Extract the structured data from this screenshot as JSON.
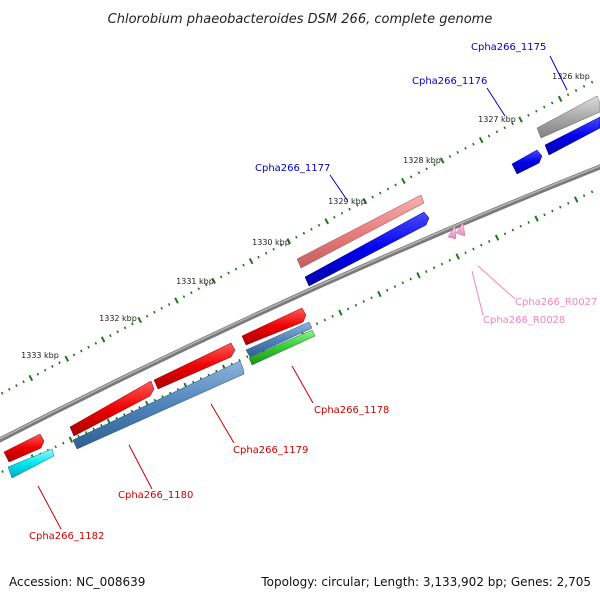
{
  "title": "Chlorobium phaeobacteroides DSM 266, complete genome",
  "accession_text": "Accession: NC_008639",
  "topology_text": "Topology: circular; Length: 3,133,902 bp; Genes: 2,705",
  "colors": {
    "backbone": "#808080",
    "tick": "#1a7a1a",
    "label_blue": "#0000cc",
    "label_red": "#cc0000",
    "label_pink": "#ee88bb"
  },
  "scale_labels": [
    "1326 kbp",
    "1327 kbp",
    "1328 kbp",
    "1329 kbp",
    "1330 kbp",
    "1331 kbp",
    "1332 kbp",
    "1333 kbp"
  ],
  "gene_labels": {
    "cpha1175": "Cpha266_1175",
    "cpha1176": "Cpha266_1176",
    "cpha1177": "Cpha266_1177",
    "cpha1178": "Cpha266_1178",
    "cpha1179": "Cpha266_1179",
    "cpha1180": "Cpha266_1180",
    "cpha1182": "Cpha266_1182",
    "r0027": "Cpha266_R0027",
    "r0028": "Cpha266_R0028"
  }
}
